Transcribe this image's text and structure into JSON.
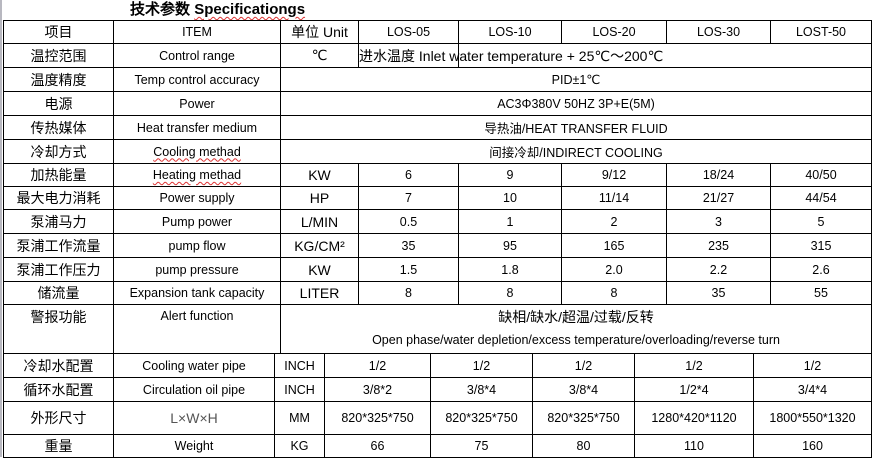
{
  "title": {
    "zh": "技术参数",
    "en": "Specificationgs"
  },
  "header": {
    "zh": "项目",
    "en": "ITEM",
    "unit": "单位 Unit",
    "models": [
      "LOS-05",
      "LOS-10",
      "LOS-20",
      "LOS-30",
      "LOST-50"
    ]
  },
  "rows": [
    {
      "zh": "温控范围",
      "en": "Control range",
      "unit": "℃",
      "span": "进水温度 Inlet water temperature + 25℃～200℃"
    },
    {
      "zh": "温度精度",
      "en": "Temp control accuracy",
      "span_all": "PID±1℃"
    },
    {
      "zh": "电源",
      "en": "Power",
      "span_all": "AC3Φ380V 50HZ 3P+E(5M)"
    },
    {
      "zh": "传热媒体",
      "en": "Heat transfer medium",
      "span_all": "导热油/HEAT TRANSFER FLUID"
    },
    {
      "zh": "冷却方式",
      "en": "Cooling methad",
      "span_all": "间接冷却/INDIRECT COOLING",
      "spell": true
    },
    {
      "zh": "加热能量",
      "en": "Heating methad",
      "unit": "KW",
      "values": [
        "6",
        "9",
        "9/12",
        "18/24",
        "40/50"
      ],
      "spell": true
    },
    {
      "zh": "最大电力消耗",
      "en": "Power supply",
      "unit": "HP",
      "values": [
        "7",
        "10",
        "11/14",
        "21/27",
        "44/54"
      ]
    },
    {
      "zh": "泵浦马力",
      "en": "Pump power",
      "unit": "L/MIN",
      "values": [
        "0.5",
        "1",
        "2",
        "3",
        "5"
      ]
    },
    {
      "zh": "泵浦工作流量",
      "en": "pump flow",
      "unit": "KG/CM²",
      "values": [
        "35",
        "95",
        "165",
        "235",
        "315"
      ]
    },
    {
      "zh": "泵浦工作压力",
      "en": "pump pressure",
      "unit": "KW",
      "values": [
        "1.5",
        "1.8",
        "2.0",
        "2.2",
        "2.6"
      ]
    },
    {
      "zh": "储流量",
      "en": "Expansion tank capacity",
      "unit": "LITER",
      "values": [
        "8",
        "8",
        "8",
        "35",
        "55"
      ]
    }
  ],
  "alert": {
    "zh": "警报功能",
    "en": "Alert function",
    "value_zh": "缺相/缺水/超温/过载/反转",
    "value_en": "Open phase/water depletion/excess temperature/overloading/reverse turn"
  },
  "rows2": [
    {
      "zh": "冷却水配置",
      "en": "Cooling water pipe",
      "unit": "INCH",
      "values": [
        "1/2",
        "1/2",
        "1/2",
        "1/2",
        "1/2"
      ]
    },
    {
      "zh": "循环水配置",
      "en": "Circulation oil pipe",
      "unit": "INCH",
      "values": [
        "3/8*2",
        "3/8*4",
        "3/8*4",
        "1/2*4",
        "3/4*4"
      ]
    },
    {
      "zh": "外形尺寸",
      "en": "L×W×H",
      "unit": "MM",
      "values": [
        "820*325*750",
        "820*325*750",
        "820*325*750",
        "1280*420*1120",
        "1800*550*1320"
      ],
      "gray": true
    },
    {
      "zh": "重量",
      "en": "Weight",
      "unit": "KG",
      "values": [
        "66",
        "75",
        "80",
        "110",
        "160"
      ]
    }
  ]
}
